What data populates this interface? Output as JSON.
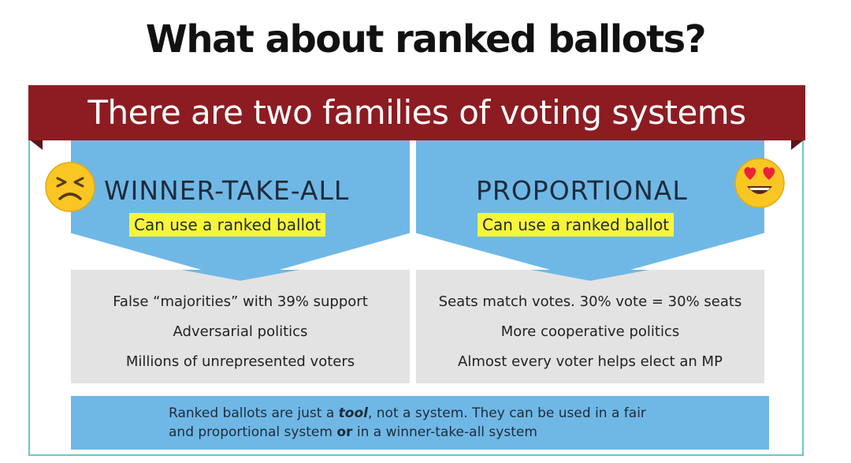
{
  "title": "What about ranked ballots?",
  "banner": "There are two families of voting systems",
  "left": {
    "heading": "WINNER-TAKE-ALL",
    "highlight": "Can use a ranked ballot",
    "bullets": [
      "False “majorities” with 39% support",
      "Adversarial politics",
      "Millions of unrepresented voters"
    ],
    "emoji": "sad-face-icon"
  },
  "right": {
    "heading": "PROPORTIONAL",
    "highlight": "Can use a ranked ballot",
    "bullets": [
      "Seats match votes. 30% vote = 30% seats",
      "More cooperative politics",
      "Almost every voter helps elect an MP"
    ],
    "emoji": "heart-eyes-face-icon"
  },
  "footer": {
    "line1_a": "Ranked ballots are just a ",
    "line1_em": "tool",
    "line1_b": ", not a system. They can be used in a fair",
    "line2_a": "and proportional system ",
    "line2_strong": "or",
    "line2_b": " in a winner-take-all system"
  },
  "colors": {
    "banner": "#8c1c22",
    "blue": "#6fb8e6",
    "grey": "#e3e3e3",
    "highlight": "#f8f43a",
    "frame": "#6cc7c3"
  }
}
